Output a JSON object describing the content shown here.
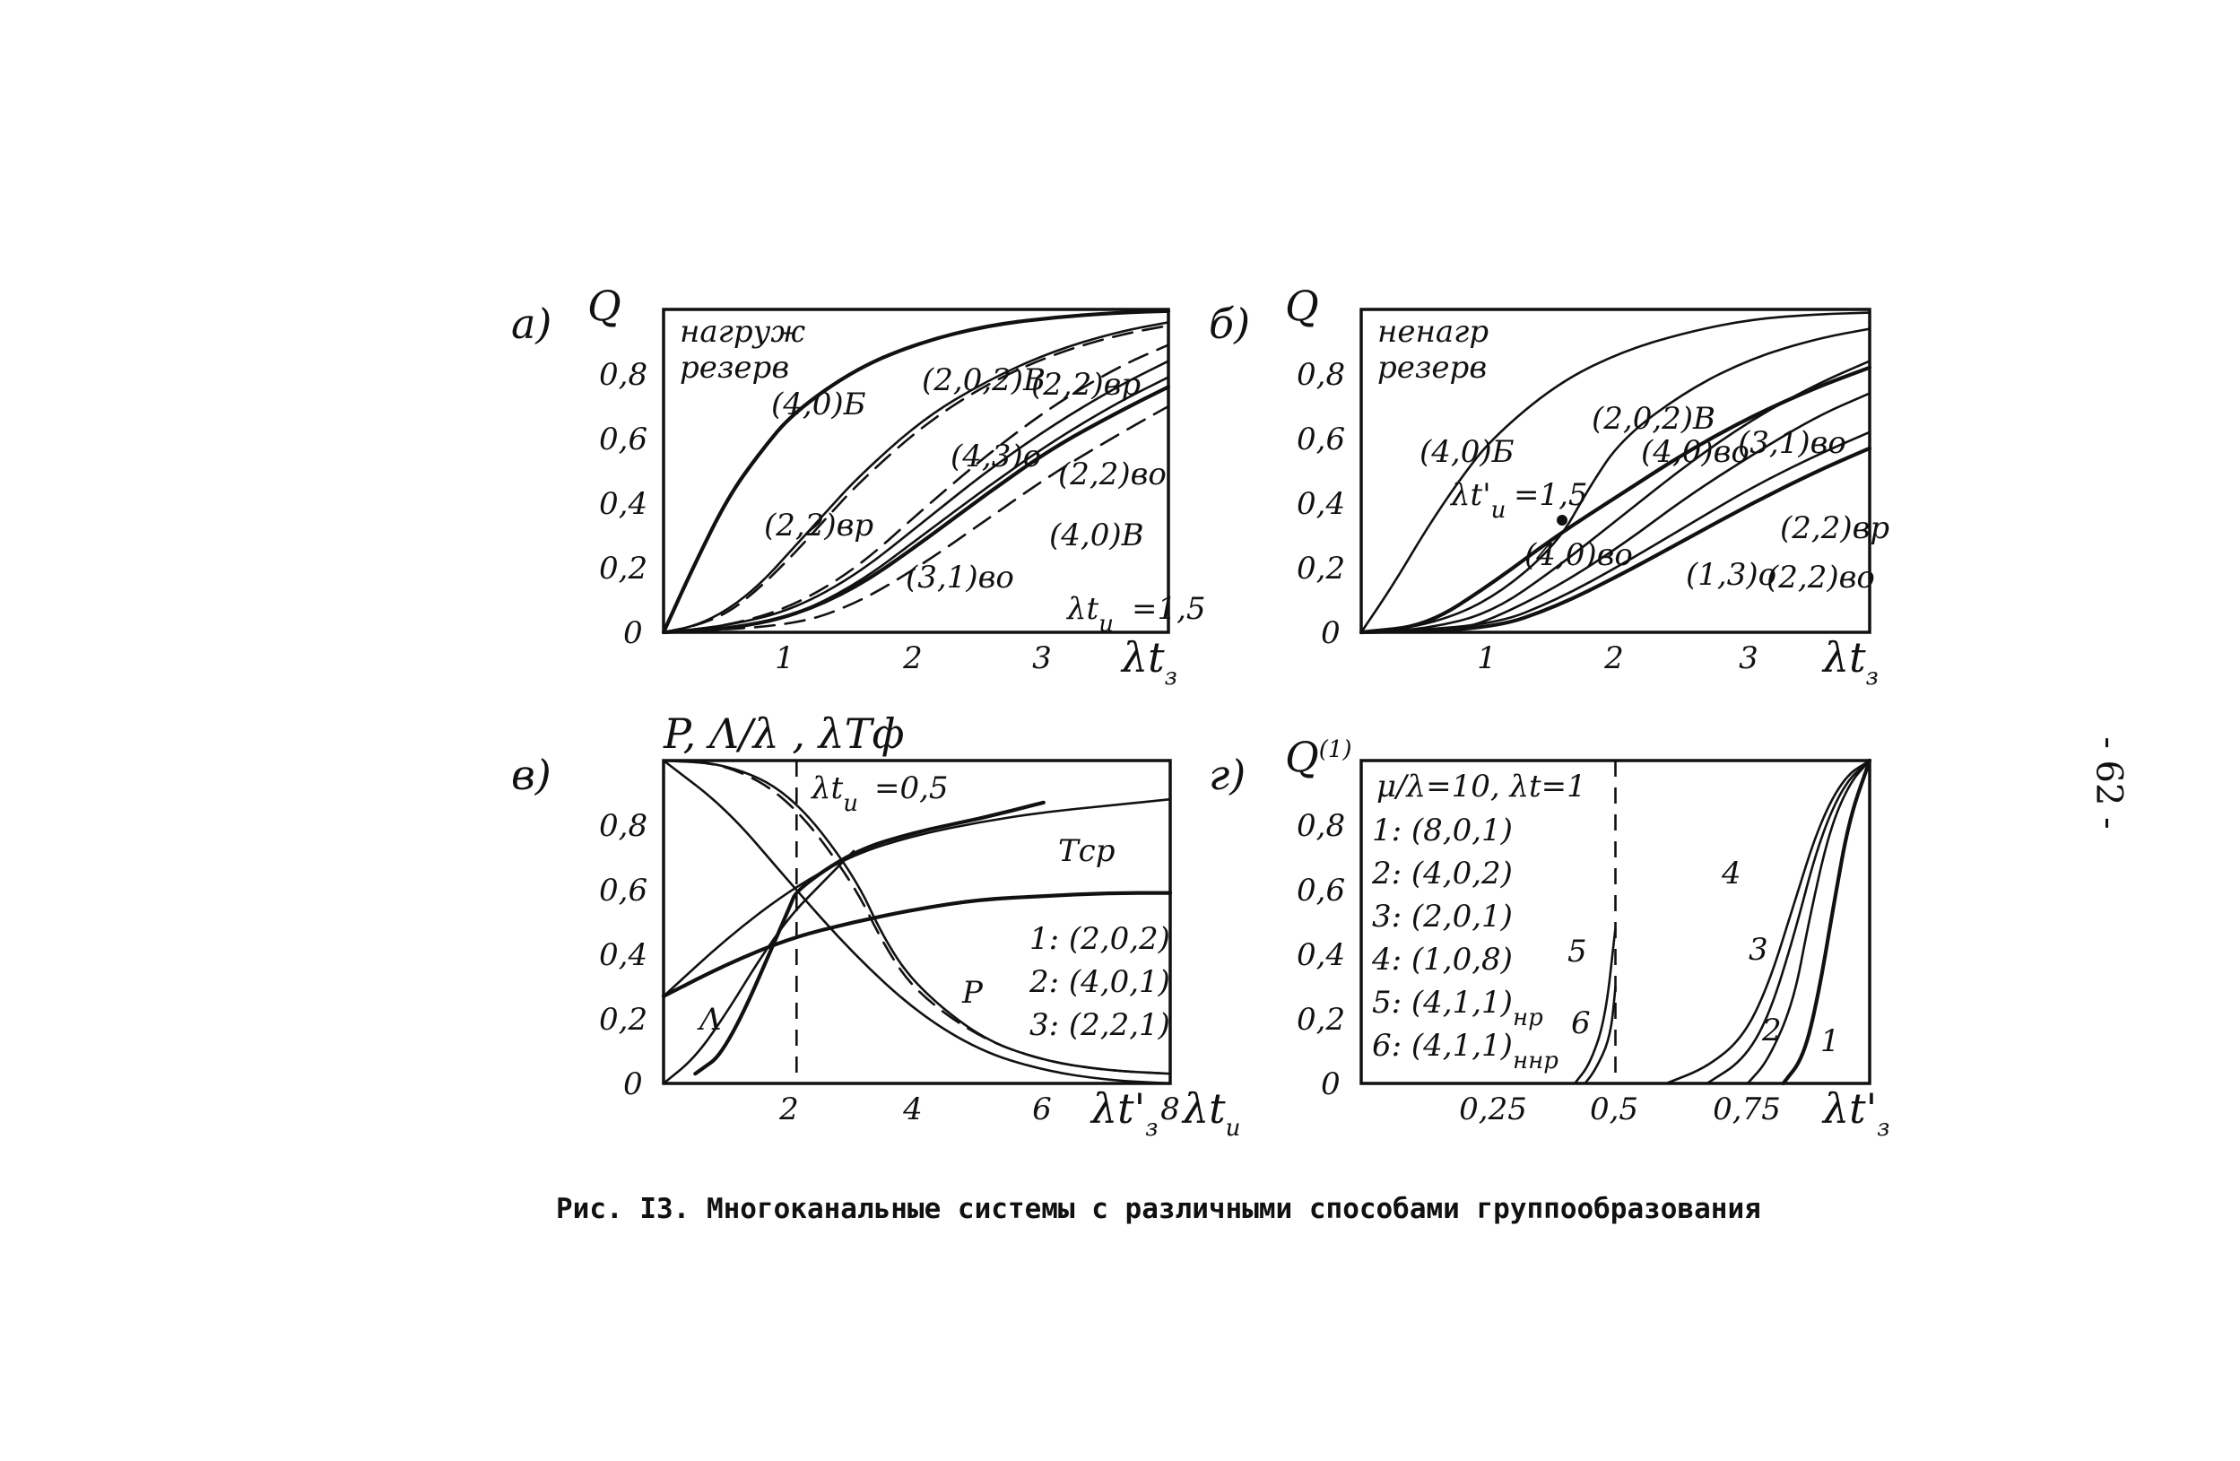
{
  "caption": "Рис. I3. Многоканальные системы с различными способами группообразования",
  "page_number": "- 62 -",
  "chart_data": [
    {
      "id": "a",
      "panel_label": "а)",
      "type": "line",
      "ylabel": "Q",
      "xlabel": "λt",
      "xlabel_sub": "з",
      "xlim": [
        0,
        3.9
      ],
      "ylim": [
        0,
        1.0
      ],
      "x_ticks": [
        "1",
        "2",
        "3"
      ],
      "y_ticks": [
        "0",
        "0,2",
        "0,4",
        "0,6",
        "0,8"
      ],
      "corner_note": [
        "нагруж",
        "резерв"
      ],
      "param_note": "λt",
      "param_sub": "и",
      "param_value": "=1,5",
      "grid": false,
      "series": [
        {
          "name": "(4,0)Б",
          "style": "bold",
          "x": [
            0,
            0.25,
            0.5,
            0.75,
            1,
            1.5,
            2,
            2.5,
            3,
            3.5,
            3.9
          ],
          "y": [
            0,
            0.22,
            0.42,
            0.56,
            0.68,
            0.82,
            0.9,
            0.95,
            0.975,
            0.99,
            0.995
          ]
        },
        {
          "name": "(2,0,2)В",
          "style": "dash",
          "x": [
            0,
            0.25,
            0.5,
            0.75,
            1,
            1.25,
            1.5,
            2,
            2.5,
            3,
            3.5,
            3.9
          ],
          "y": [
            0,
            0.02,
            0.06,
            0.14,
            0.24,
            0.35,
            0.46,
            0.64,
            0.77,
            0.86,
            0.92,
            0.95
          ]
        },
        {
          "name": "(2,2)вр",
          "style": "solid",
          "x": [
            0,
            0.25,
            0.5,
            0.75,
            1,
            1.25,
            1.5,
            2,
            2.5,
            3,
            3.5,
            3.9
          ],
          "y": [
            0,
            0.02,
            0.07,
            0.15,
            0.26,
            0.37,
            0.48,
            0.66,
            0.78,
            0.87,
            0.93,
            0.96
          ]
        },
        {
          "name": "(4,3)о",
          "style": "dash",
          "x": [
            0,
            0.5,
            1,
            1.5,
            2,
            2.5,
            3,
            3.5,
            3.9
          ],
          "y": [
            0,
            0.02,
            0.08,
            0.2,
            0.38,
            0.55,
            0.7,
            0.82,
            0.89
          ]
        },
        {
          "name": "(2,2)во",
          "style": "solid",
          "x": [
            0,
            0.5,
            1,
            1.5,
            2,
            2.5,
            3,
            3.5,
            3.9
          ],
          "y": [
            0,
            0.02,
            0.07,
            0.18,
            0.34,
            0.5,
            0.64,
            0.76,
            0.84
          ]
        },
        {
          "name": "(4,0)В",
          "style": "solid",
          "x": [
            0,
            0.5,
            1,
            1.5,
            2,
            2.5,
            3,
            3.5,
            3.9
          ],
          "y": [
            0,
            0.01,
            0.05,
            0.15,
            0.3,
            0.45,
            0.59,
            0.71,
            0.79
          ]
        },
        {
          "name": "(3,1)во",
          "style": "bold",
          "x": [
            0,
            0.5,
            1,
            1.5,
            2,
            2.5,
            3,
            3.5,
            3.9
          ],
          "y": [
            0,
            0.01,
            0.05,
            0.14,
            0.28,
            0.43,
            0.57,
            0.68,
            0.76
          ]
        },
        {
          "name": "",
          "style": "dash",
          "x": [
            0,
            1,
            1.5,
            2,
            2.5,
            3,
            3.5,
            3.9
          ],
          "y": [
            0,
            0.02,
            0.09,
            0.21,
            0.35,
            0.49,
            0.61,
            0.7
          ]
        }
      ]
    },
    {
      "id": "b",
      "panel_label": "б)",
      "type": "line",
      "ylabel": "Q",
      "xlabel": "λt",
      "xlabel_sub": "з",
      "xlabel_prime": "'",
      "xlim": [
        0,
        3.9
      ],
      "ylim": [
        0,
        1.0
      ],
      "x_ticks": [
        "1",
        "2",
        "3"
      ],
      "y_ticks": [
        "0",
        "0,2",
        "0,4",
        "0,6",
        "0,8"
      ],
      "corner_note": [
        "ненагр",
        "резерв"
      ],
      "param_note": "λt'",
      "param_sub": "и",
      "param_value": "=1,5",
      "grid": false,
      "series": [
        {
          "name": "(4,0)Б",
          "style": "solid",
          "x": [
            0,
            0.25,
            0.5,
            0.75,
            1,
            1.5,
            2,
            2.5,
            3,
            3.5,
            3.9
          ],
          "y": [
            0,
            0.15,
            0.32,
            0.47,
            0.6,
            0.77,
            0.87,
            0.93,
            0.97,
            0.985,
            0.99
          ]
        },
        {
          "name": "(2,0,2)В",
          "style": "solid",
          "x": [
            0,
            0.5,
            1,
            1.5,
            1.75,
            2,
            2.5,
            3,
            3.5,
            3.9
          ],
          "y": [
            0,
            0.02,
            0.1,
            0.27,
            0.45,
            0.6,
            0.75,
            0.85,
            0.91,
            0.94
          ]
        },
        {
          "name": "(4,0)во",
          "style": "bold",
          "x": [
            0,
            0.5,
            1,
            1.5,
            2,
            2.5,
            3,
            3.5,
            3.9
          ],
          "y": [
            0,
            0.02,
            0.15,
            0.3,
            0.43,
            0.56,
            0.67,
            0.76,
            0.82
          ]
        },
        {
          "name": "(2,2)вр",
          "style": "solid",
          "x": [
            0,
            0.5,
            1,
            1.5,
            2,
            2.5,
            3,
            3.5,
            3.9
          ],
          "y": [
            0,
            0.01,
            0.06,
            0.2,
            0.36,
            0.52,
            0.66,
            0.77,
            0.84
          ]
        },
        {
          "name": "(3,1)во",
          "style": "solid",
          "x": [
            0,
            0.75,
            1,
            1.5,
            2,
            2.5,
            3,
            3.5,
            3.9
          ],
          "y": [
            0,
            0.01,
            0.04,
            0.14,
            0.27,
            0.42,
            0.55,
            0.67,
            0.74
          ]
        },
        {
          "name": "(2,2)во",
          "style": "solid",
          "x": [
            0,
            1,
            1.5,
            2,
            2.5,
            3,
            3.5,
            3.9
          ],
          "y": [
            0,
            0.02,
            0.1,
            0.21,
            0.33,
            0.45,
            0.55,
            0.62
          ]
        },
        {
          "name": "(1,3)о",
          "style": "bold",
          "x": [
            0,
            1,
            1.5,
            2,
            2.5,
            3,
            3.5,
            3.9
          ],
          "y": [
            0,
            0.01,
            0.08,
            0.18,
            0.29,
            0.4,
            0.5,
            0.57
          ]
        }
      ]
    },
    {
      "id": "v",
      "panel_label": "в)",
      "type": "line",
      "ylabel": "P, Λ/λ , λTф",
      "xlabel": "λt'",
      "xlabel_sub": "з",
      "xlabel2": "λt",
      "xlabel2_sub": "и",
      "xlim": [
        0,
        8.0
      ],
      "ylim": [
        0,
        1.0
      ],
      "x_ticks": [
        "2",
        "4",
        "6",
        "8"
      ],
      "y_ticks": [
        "0",
        "0,2",
        "0,4",
        "0,6",
        "0,8"
      ],
      "param_note": "λt",
      "param_sub": "и",
      "param_value": "=0,5",
      "vline_x": 2.1,
      "legend": [
        "1: (2,0,2)",
        "2: (4,0,1)",
        "3: (2,2,1)"
      ],
      "curve_labels": [
        "Тср",
        "P",
        "Λ"
      ],
      "grid": false,
      "series": [
        {
          "name": "λTф 1",
          "style": "bold",
          "x": [
            0,
            1,
            2,
            3,
            4,
            5,
            6,
            7,
            8
          ],
          "y": [
            0.27,
            0.37,
            0.45,
            0.5,
            0.54,
            0.57,
            0.58,
            0.59,
            0.59
          ]
        },
        {
          "name": "λTф 2",
          "style": "bold",
          "x": [
            0.5,
            1,
            2,
            2.1,
            3,
            4,
            5,
            6
          ],
          "y": [
            0.03,
            0.1,
            0.55,
            0.6,
            0.72,
            0.78,
            0.82,
            0.87
          ]
        },
        {
          "name": "λTф (Тср)",
          "style": "solid",
          "x": [
            0,
            1,
            2,
            3,
            4,
            5,
            6,
            7,
            8
          ],
          "y": [
            0.27,
            0.45,
            0.6,
            0.71,
            0.77,
            0.81,
            0.84,
            0.86,
            0.88
          ]
        },
        {
          "name": "P 1",
          "style": "solid",
          "x": [
            0,
            1,
            2,
            3,
            4,
            5,
            6,
            7,
            8
          ],
          "y": [
            1.0,
            0.85,
            0.62,
            0.4,
            0.22,
            0.1,
            0.04,
            0.01,
            0.0
          ]
        },
        {
          "name": "P 2",
          "style": "solid",
          "x": [
            0,
            1,
            2,
            3,
            3.5,
            4,
            5,
            6,
            7,
            8
          ],
          "y": [
            1.0,
            0.99,
            0.9,
            0.65,
            0.44,
            0.3,
            0.14,
            0.07,
            0.04,
            0.03
          ]
        },
        {
          "name": "P 3",
          "style": "dash",
          "x": [
            0,
            1,
            2,
            3,
            3.5,
            4,
            5,
            6,
            7,
            8
          ],
          "y": [
            1.0,
            0.99,
            0.88,
            0.62,
            0.42,
            0.28,
            0.14,
            0.07,
            0.04,
            0.03
          ]
        },
        {
          "name": "Λ/λ 2",
          "style": "solid",
          "x": [
            0,
            0.5,
            1,
            1.5,
            2,
            2.5,
            3
          ],
          "y": [
            0.0,
            0.08,
            0.22,
            0.38,
            0.52,
            0.62,
            0.72
          ]
        }
      ]
    },
    {
      "id": "g",
      "panel_label": "г)",
      "type": "line",
      "ylabel": "Q",
      "ylabel_sup": "(1)",
      "xlabel": "λt'",
      "xlabel_sub": "з",
      "xlim": [
        0,
        1.0
      ],
      "ylim": [
        0,
        1.0
      ],
      "x_ticks": [
        "0,25",
        "0,5",
        "0,75"
      ],
      "y_ticks": [
        "0",
        "0,2",
        "0,4",
        "0,6",
        "0,8"
      ],
      "param_note": "μ/λ=10, λt=1",
      "vline_x": 0.5,
      "legend": [
        "1: (8,0,1)",
        "2: (4,0,2)",
        "3: (2,0,1)",
        "4: (1,0,8)",
        "5: (4,1,1)",
        "6: (4,1,1)"
      ],
      "legend_subs": [
        "",
        "",
        "",
        "",
        "нр",
        "ннр"
      ],
      "grid": false,
      "series": [
        {
          "name": "1",
          "style": "bold",
          "x": [
            0.83,
            0.87,
            0.9,
            0.93,
            0.96,
            1.0
          ],
          "y": [
            0.0,
            0.08,
            0.28,
            0.56,
            0.82,
            1.0
          ]
        },
        {
          "name": "2",
          "style": "solid",
          "x": [
            0.76,
            0.8,
            0.85,
            0.88,
            0.92,
            0.96,
            1.0
          ],
          "y": [
            0.0,
            0.07,
            0.25,
            0.5,
            0.78,
            0.93,
            1.0
          ]
        },
        {
          "name": "3",
          "style": "solid",
          "x": [
            0.68,
            0.75,
            0.8,
            0.85,
            0.9,
            0.95,
            1.0
          ],
          "y": [
            0.0,
            0.07,
            0.2,
            0.45,
            0.75,
            0.93,
            1.0
          ]
        },
        {
          "name": "4",
          "style": "solid",
          "x": [
            0.6,
            0.68,
            0.75,
            0.8,
            0.85,
            0.9,
            0.95,
            1.0
          ],
          "y": [
            0.0,
            0.05,
            0.14,
            0.3,
            0.55,
            0.8,
            0.95,
            1.0
          ]
        },
        {
          "name": "5",
          "style": "solid",
          "x": [
            0.42,
            0.45,
            0.48,
            0.5
          ],
          "y": [
            0.0,
            0.06,
            0.2,
            0.48
          ]
        },
        {
          "name": "6",
          "style": "solid",
          "x": [
            0.44,
            0.46,
            0.49,
            0.5
          ],
          "y": [
            0.0,
            0.04,
            0.14,
            0.3
          ]
        }
      ]
    }
  ]
}
